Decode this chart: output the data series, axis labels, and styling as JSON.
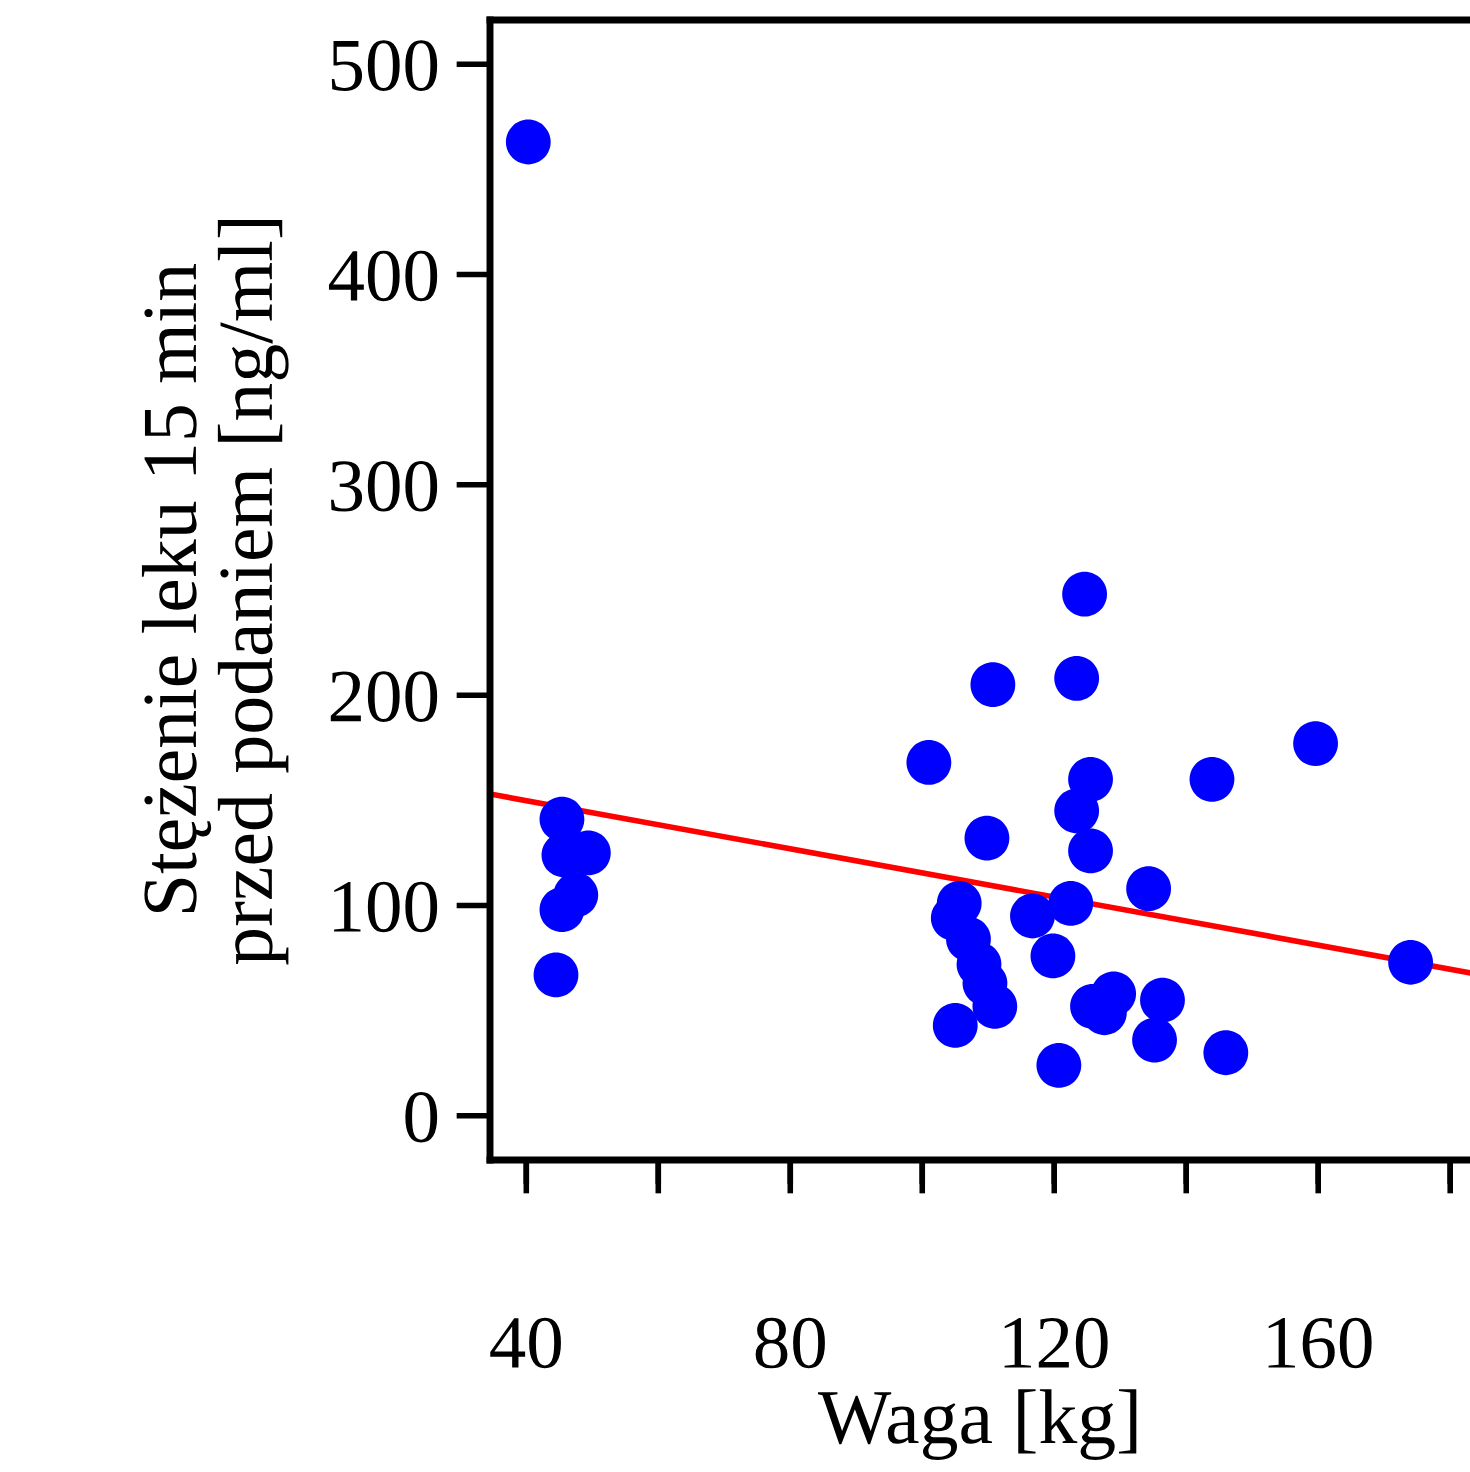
{
  "chart_data": {
    "type": "scatter",
    "xlabel": "Waga [kg]",
    "ylabel": "Stężenie leku 15 min\nprzed podaniem [ng/ml]",
    "xlim": [
      34.5,
      183
    ],
    "ylim": [
      -21,
      521
    ],
    "xticks": [
      40,
      {
        "value": 60,
        "label": null
      },
      80,
      {
        "value": 100,
        "label": null
      },
      120,
      {
        "value": 140,
        "label": null
      },
      160,
      {
        "value": 180,
        "label": null
      }
    ],
    "yticks": [
      0,
      100,
      200,
      300,
      400,
      500
    ],
    "grid": false,
    "series": [
      {
        "color": "#0000ff",
        "marker": "circle",
        "x": [
          40.3,
          45.4,
          45.7,
          49.4,
          47.5,
          45.4,
          44.5,
          124.6,
          110.7,
          123.4,
          101,
          125.5,
          123.4,
          143.9,
          109.8,
          125.5,
          134.3,
          105.6,
          104.7,
          122.5,
          116.7,
          107,
          108.6,
          109.5,
          111,
          105,
          119.8,
          125.8,
          129,
          127.6,
          136.4,
          135.2,
          120.7,
          146,
          159.6,
          174
        ],
        "values": [
          463,
          141,
          124,
          125,
          105,
          98,
          67,
          248,
          205,
          208,
          168,
          160,
          145,
          160,
          132,
          126,
          108,
          101,
          94,
          101,
          95,
          84,
          72,
          63,
          52,
          43,
          76,
          52,
          58,
          49,
          55,
          36,
          24,
          30,
          177,
          73
        ]
      },
      {
        "type": "line",
        "marker": "none",
        "color": "#ff0000",
        "x": [
          34.5,
          183
        ],
        "values": [
          153,
          68
        ]
      }
    ]
  }
}
